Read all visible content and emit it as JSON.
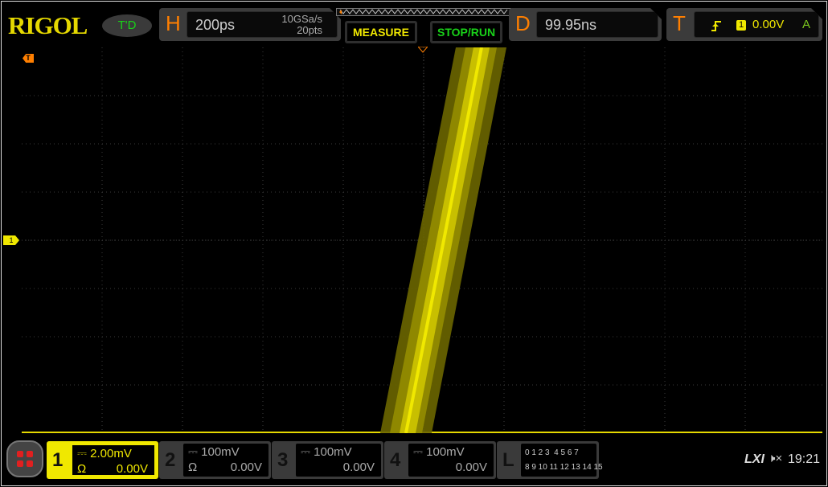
{
  "brand": "RIGOL",
  "trigger_mode": "T'D",
  "horizontal": {
    "label": "H",
    "timebase": "200ps",
    "sample_rate": "10GSa/s",
    "memory_depth": "20pts"
  },
  "buttons": {
    "measure": "MEASURE",
    "stop_run": "STOP/RUN"
  },
  "delay": {
    "label": "D",
    "value": "99.95ns"
  },
  "trigger": {
    "label": "T",
    "source": "1",
    "level": "0.00V",
    "sweep": "A"
  },
  "markers": {
    "channel1": "1",
    "trigger": "T"
  },
  "channels": [
    {
      "num": "1",
      "scale": "2.00mV",
      "impedance": "Ω",
      "offset": "0.00V",
      "active": true
    },
    {
      "num": "2",
      "scale": "100mV",
      "impedance": "Ω",
      "offset": "0.00V",
      "active": false
    },
    {
      "num": "3",
      "scale": "100mV",
      "impedance": "",
      "offset": "0.00V",
      "active": false
    },
    {
      "num": "4",
      "scale": "100mV",
      "impedance": "",
      "offset": "0.00V",
      "active": false
    }
  ],
  "logic": {
    "label": "L",
    "row1": "0 1 2 3  4 5 6 7",
    "row2": "8 9 10 11 12 13 14 15"
  },
  "status": {
    "lxi": "LXI",
    "time": "19:21"
  },
  "colors": {
    "ch1": "#f0e800",
    "accent": "#ff7f00",
    "run": "#19d219"
  }
}
